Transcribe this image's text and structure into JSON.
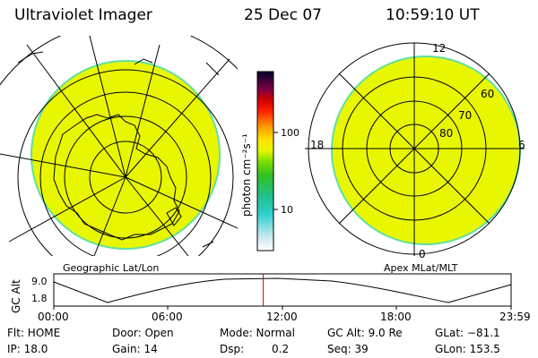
{
  "header": {
    "instrument": "Ultraviolet Imager",
    "date": "25 Dec 07",
    "time": "10:59:10 UT"
  },
  "colorbar": {
    "label": "photon cm⁻²s⁻¹",
    "ticks": [
      "100",
      "10"
    ]
  },
  "left_map": {
    "caption": "Geographic Lat/Lon"
  },
  "right_map": {
    "caption": "Apex MLat/MLT",
    "mlt_labels": [
      "12",
      "18",
      "6",
      "0"
    ],
    "lat_labels": [
      "60",
      "70",
      "80"
    ]
  },
  "timeline": {
    "ylabel": "GC Alt",
    "y_ticks": [
      "9.0",
      "1.8"
    ],
    "x_ticks": [
      "00:00",
      "06:00",
      "12:00",
      "18:00",
      "23:59"
    ],
    "current_time_fraction": 0.458
  },
  "status": {
    "flt": "Flt: HOME",
    "ip": "IP: 18.0",
    "door": "Door: Open",
    "gain": "Gain: 14",
    "mode": "Mode: Normal",
    "dsp_label": "Dsp:",
    "dsp_value": "0.2",
    "gc_alt": "GC Alt: 9.0 Re",
    "seq": "Seq: 39",
    "glat": "GLat: −81.1",
    "glon": "GLon: 153.5"
  },
  "colors": {
    "fill": "#e8f700",
    "rim": "#5fe0a0",
    "marker": "#e00000"
  }
}
